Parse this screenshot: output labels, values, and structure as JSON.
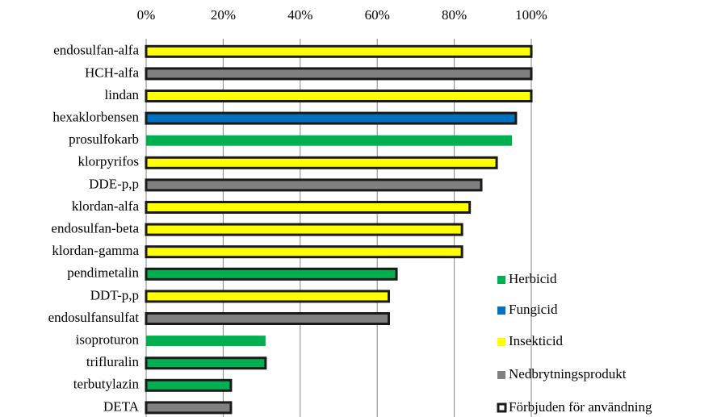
{
  "chart_data": {
    "type": "barh",
    "categories": [
      "endosulfan-alfa",
      "HCH-alfa",
      "lindan",
      "hexaklorbensen",
      "prosulfokarb",
      "klorpyrifos",
      "DDE-p,p",
      "klordan-alfa",
      "endosulfan-beta",
      "klordan-gamma",
      "pendimetalin",
      "DDT-p,p",
      "endosulfansulfat",
      "isoproturon",
      "trifluralin",
      "terbutylazin",
      "DETA"
    ],
    "series": [
      {
        "name": "Herbicid",
        "color": "#00b050",
        "values": [
          null,
          null,
          null,
          null,
          95,
          null,
          null,
          null,
          null,
          null,
          65,
          null,
          null,
          31,
          31,
          22,
          null
        ]
      },
      {
        "name": "Fungicid",
        "color": "#0070c0",
        "values": [
          null,
          null,
          null,
          96,
          null,
          null,
          null,
          null,
          null,
          null,
          null,
          null,
          null,
          null,
          null,
          null,
          null
        ]
      },
      {
        "name": "Insekticid",
        "color": "#ffff00",
        "values": [
          100,
          null,
          100,
          null,
          null,
          91,
          null,
          84,
          82,
          82,
          null,
          63,
          null,
          null,
          null,
          null,
          null
        ]
      },
      {
        "name": "Nedbrytningsprodukt",
        "color": "#808080",
        "values": [
          null,
          100,
          null,
          null,
          null,
          null,
          87,
          null,
          null,
          null,
          null,
          null,
          63,
          null,
          null,
          null,
          22
        ]
      }
    ],
    "banned": [
      true,
      true,
      true,
      true,
      false,
      true,
      true,
      true,
      true,
      true,
      true,
      true,
      true,
      false,
      true,
      true,
      true
    ],
    "banned_legend": "Förbjuden för användning",
    "banned_color": "#1a1a1a",
    "xlim": [
      0,
      100
    ],
    "xticks": [
      {
        "value": 0,
        "label": "0%"
      },
      {
        "value": 20,
        "label": "20%"
      },
      {
        "value": 40,
        "label": "40%"
      },
      {
        "value": 60,
        "label": "60%"
      },
      {
        "value": 80,
        "label": "80%"
      },
      {
        "value": 100,
        "label": "100%"
      }
    ],
    "grid": true
  }
}
